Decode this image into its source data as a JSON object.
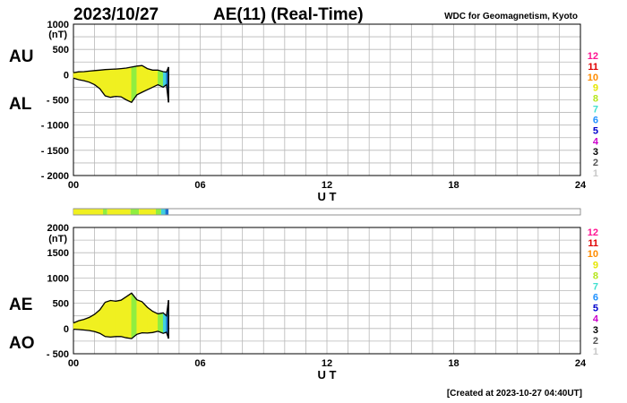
{
  "header": {
    "date": "2023/10/27",
    "title": "AE(11) (Real-Time)",
    "source": "WDC for Geomagnetism, Kyoto"
  },
  "footer": "[Created at 2023-10-27 04:40UT]",
  "station_count_labels": [
    "12",
    "11",
    "10",
    "9",
    "8",
    "7",
    "6",
    "5",
    "4",
    "3",
    "2",
    "1"
  ],
  "station_count_colors": [
    "#ff1493",
    "#e00000",
    "#ff8c00",
    "#e6e600",
    "#b5e61d",
    "#40e0d0",
    "#1e90ff",
    "#0000cd",
    "#cc00cc",
    "#000000",
    "#555555",
    "#c8c8c8"
  ],
  "status_bar_colors": {
    "yellow": "#f0f020",
    "green": "#90ee40",
    "cyan": "#40d0e0",
    "blue": "#1e6fd0"
  },
  "chart_data": [
    {
      "type": "area",
      "panel": "AU/AL",
      "series_labels": [
        "AU",
        "AL"
      ],
      "ylabel": "(nT)",
      "xlabel": "U T",
      "x_ticks": [
        "00",
        "06",
        "12",
        "18",
        "24"
      ],
      "y_ticks": [
        1000,
        500,
        0,
        -500,
        -1000,
        -1500,
        -2000
      ],
      "xlim": [
        0,
        24
      ],
      "ylim": [
        -2000,
        1000
      ],
      "grid": true,
      "x": [
        0,
        0.25,
        0.5,
        0.75,
        1.0,
        1.25,
        1.5,
        1.75,
        2.0,
        2.25,
        2.5,
        2.75,
        3.0,
        3.25,
        3.5,
        3.75,
        4.0,
        4.25,
        4.4,
        4.5
      ],
      "series": [
        {
          "name": "AU",
          "values": [
            40,
            55,
            60,
            70,
            80,
            90,
            100,
            105,
            110,
            120,
            130,
            150,
            170,
            180,
            120,
            90,
            90,
            60,
            50,
            150
          ]
        },
        {
          "name": "AL",
          "values": [
            -70,
            -100,
            -120,
            -150,
            -200,
            -280,
            -420,
            -450,
            -430,
            -440,
            -500,
            -550,
            -400,
            -350,
            -300,
            -250,
            -200,
            -250,
            -200,
            -550
          ]
        }
      ]
    },
    {
      "type": "area",
      "panel": "AE/AO",
      "series_labels": [
        "AE",
        "AO"
      ],
      "ylabel": "(nT)",
      "xlabel": "U T",
      "x_ticks": [
        "00",
        "06",
        "12",
        "18",
        "24"
      ],
      "y_ticks": [
        2000,
        1500,
        1000,
        500,
        0,
        -500
      ],
      "xlim": [
        0,
        24
      ],
      "ylim": [
        -500,
        2000
      ],
      "grid": true,
      "x": [
        0,
        0.25,
        0.5,
        0.75,
        1.0,
        1.25,
        1.5,
        1.75,
        2.0,
        2.25,
        2.5,
        2.75,
        3.0,
        3.25,
        3.5,
        3.75,
        4.0,
        4.25,
        4.4,
        4.5
      ],
      "series": [
        {
          "name": "AE",
          "values": [
            110,
            155,
            180,
            220,
            280,
            370,
            520,
            555,
            540,
            560,
            630,
            700,
            570,
            530,
            420,
            340,
            290,
            310,
            250,
            560
          ]
        },
        {
          "name": "AO",
          "values": [
            -15,
            -22,
            -30,
            -40,
            -60,
            -95,
            -160,
            -170,
            -160,
            -160,
            -185,
            -200,
            -115,
            -85,
            -90,
            -80,
            -55,
            -95,
            -75,
            -200
          ]
        }
      ],
      "station_color_bands": [
        {
          "from": 0.0,
          "to": 1.4,
          "color": "yellow"
        },
        {
          "from": 1.4,
          "to": 1.6,
          "color": "green"
        },
        {
          "from": 1.6,
          "to": 2.7,
          "color": "yellow"
        },
        {
          "from": 2.7,
          "to": 3.1,
          "color": "green"
        },
        {
          "from": 3.1,
          "to": 3.9,
          "color": "yellow"
        },
        {
          "from": 3.9,
          "to": 4.15,
          "color": "green"
        },
        {
          "from": 4.15,
          "to": 4.35,
          "color": "cyan"
        },
        {
          "from": 4.35,
          "to": 4.5,
          "color": "blue"
        }
      ]
    }
  ]
}
